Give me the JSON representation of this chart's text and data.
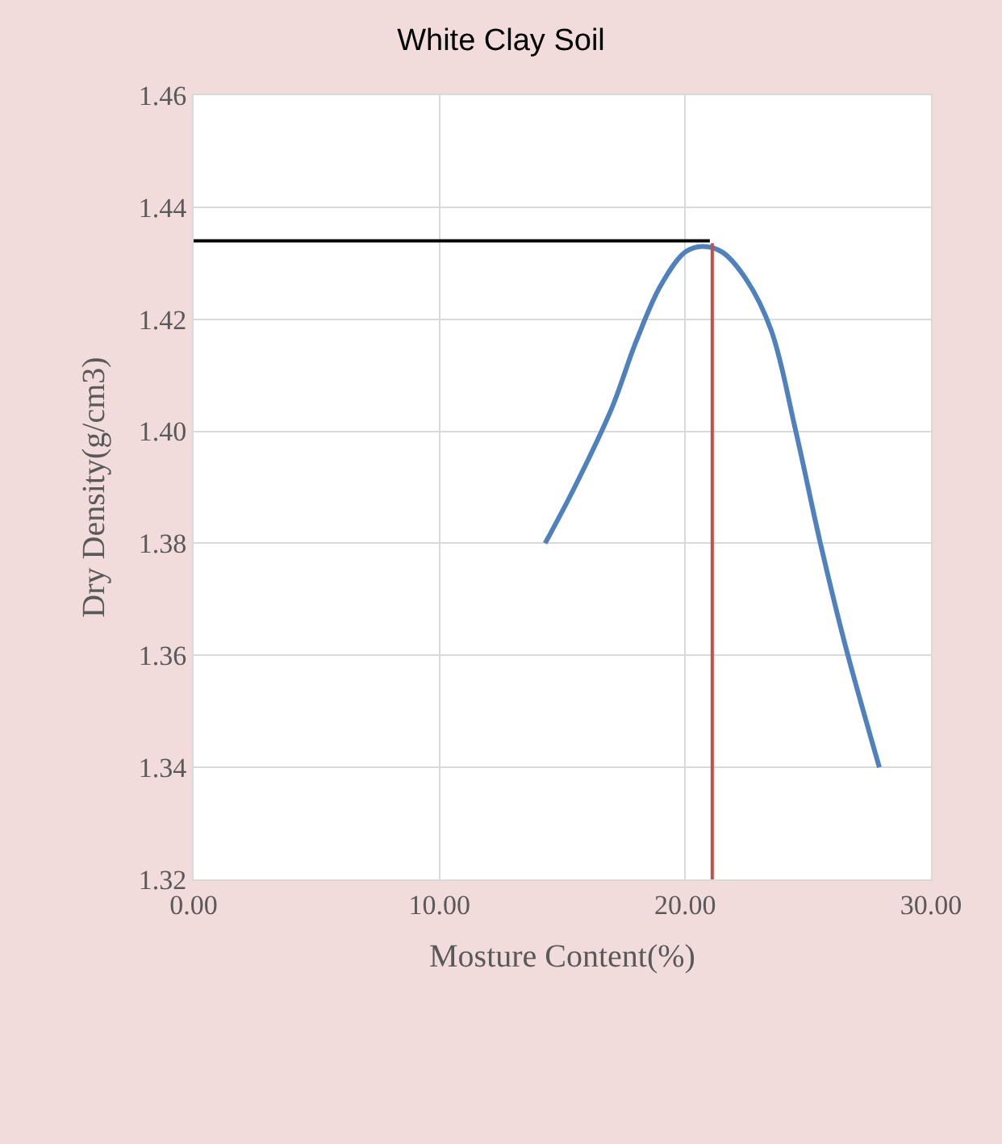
{
  "chart_data": {
    "type": "line",
    "title": "White Clay Soil",
    "xlabel": "Mosture Content(%)",
    "ylabel": "Dry Density(g/cm3)",
    "x": [
      14.3,
      15.5,
      17,
      18,
      19,
      20,
      20.7,
      21.5,
      22.5,
      23.5,
      24.5,
      25.5,
      26.5,
      27.9
    ],
    "series": [
      {
        "color": "#4f81bd",
        "values": [
          1.38,
          1.39,
          1.404,
          1.416,
          1.426,
          1.432,
          1.433,
          1.432,
          1.427,
          1.418,
          1.4,
          1.38,
          1.362,
          1.34
        ]
      }
    ],
    "xlim": [
      0,
      30
    ],
    "xticks": [
      {
        "value": 0,
        "label": "0.00"
      },
      {
        "value": 10,
        "label": "10.00"
      },
      {
        "value": 20,
        "label": "20.00"
      },
      {
        "value": 30,
        "label": "30.00"
      }
    ],
    "ylim": [
      1.32,
      1.46
    ],
    "yticks": [
      {
        "value": 1.32,
        "label": "1.32"
      },
      {
        "value": 1.34,
        "label": "1.34"
      },
      {
        "value": 1.36,
        "label": "1.36"
      },
      {
        "value": 1.38,
        "label": "1.38"
      },
      {
        "value": 1.4,
        "label": "1.40"
      },
      {
        "value": 1.42,
        "label": "1.42"
      },
      {
        "value": 1.44,
        "label": "1.44"
      },
      {
        "value": 1.46,
        "label": "1.46"
      }
    ],
    "ref_lines": [
      {
        "axis": "y",
        "value": 1.434,
        "color": "#000000"
      },
      {
        "axis": "x",
        "value": 21.1,
        "color": "#c0504d"
      }
    ],
    "grid": true,
    "marker": "none",
    "line_style": "solid"
  }
}
